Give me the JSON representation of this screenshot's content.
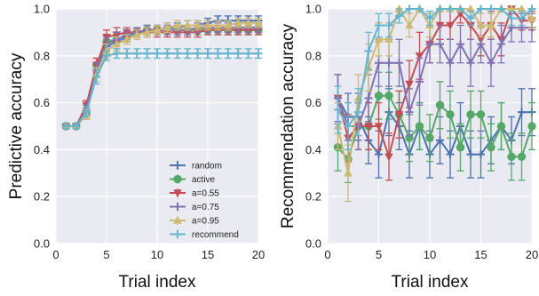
{
  "chart_data": [
    {
      "type": "line",
      "xlabel": "Trial index",
      "ylabel": "Predictive accuracy",
      "xlim": [
        0,
        20
      ],
      "ylim": [
        0.0,
        1.0
      ],
      "xticks": [
        "0",
        "5",
        "10",
        "15",
        "20"
      ],
      "yticks": [
        "0.0",
        "0.2",
        "0.4",
        "0.6",
        "0.8",
        "1.0"
      ],
      "grid": true,
      "legend_position": "lower-right",
      "x": [
        1,
        2,
        3,
        4,
        5,
        6,
        7,
        8,
        9,
        10,
        11,
        12,
        13,
        14,
        15,
        16,
        17,
        18,
        19,
        20
      ],
      "series": [
        {
          "name": "random",
          "color": "#4c72b0",
          "marker": "plus",
          "values": [
            0.5,
            0.5,
            0.55,
            0.74,
            0.84,
            0.86,
            0.88,
            0.9,
            0.91,
            0.91,
            0.92,
            0.92,
            0.93,
            0.93,
            0.94,
            0.95,
            0.95,
            0.95,
            0.95,
            0.95
          ],
          "errors": [
            0.01,
            0.01,
            0.02,
            0.03,
            0.03,
            0.03,
            0.02,
            0.02,
            0.02,
            0.02,
            0.02,
            0.02,
            0.02,
            0.02,
            0.02,
            0.02,
            0.02,
            0.02,
            0.02,
            0.02
          ]
        },
        {
          "name": "active",
          "color": "#55a868",
          "marker": "circle",
          "values": [
            0.5,
            0.5,
            0.56,
            0.76,
            0.86,
            0.87,
            0.89,
            0.9,
            0.91,
            0.91,
            0.91,
            0.91,
            0.91,
            0.91,
            0.91,
            0.91,
            0.91,
            0.91,
            0.91,
            0.91
          ],
          "errors": [
            0.01,
            0.01,
            0.02,
            0.03,
            0.03,
            0.03,
            0.02,
            0.02,
            0.02,
            0.02,
            0.02,
            0.02,
            0.02,
            0.02,
            0.02,
            0.02,
            0.02,
            0.02,
            0.02,
            0.02
          ]
        },
        {
          "name": "a=0.55",
          "color": "#c44e52",
          "marker": "triangle-down",
          "values": [
            0.5,
            0.5,
            0.59,
            0.76,
            0.88,
            0.89,
            0.9,
            0.9,
            0.9,
            0.9,
            0.9,
            0.9,
            0.9,
            0.9,
            0.91,
            0.91,
            0.91,
            0.91,
            0.91,
            0.91
          ],
          "errors": [
            0.01,
            0.01,
            0.02,
            0.03,
            0.03,
            0.03,
            0.02,
            0.02,
            0.02,
            0.02,
            0.02,
            0.02,
            0.02,
            0.02,
            0.02,
            0.02,
            0.02,
            0.02,
            0.02,
            0.02
          ]
        },
        {
          "name": "a=0.75",
          "color": "#8172b2",
          "marker": "plus",
          "values": [
            0.5,
            0.5,
            0.57,
            0.74,
            0.85,
            0.87,
            0.89,
            0.9,
            0.91,
            0.91,
            0.91,
            0.91,
            0.91,
            0.92,
            0.92,
            0.92,
            0.92,
            0.92,
            0.92,
            0.92
          ],
          "errors": [
            0.01,
            0.01,
            0.02,
            0.03,
            0.03,
            0.03,
            0.02,
            0.02,
            0.02,
            0.02,
            0.02,
            0.02,
            0.02,
            0.02,
            0.02,
            0.02,
            0.02,
            0.02,
            0.02,
            0.02
          ]
        },
        {
          "name": "a=0.95",
          "color": "#ccb974",
          "marker": "triangle-up",
          "values": [
            0.5,
            0.5,
            0.55,
            0.72,
            0.82,
            0.85,
            0.87,
            0.89,
            0.9,
            0.91,
            0.92,
            0.93,
            0.93,
            0.93,
            0.93,
            0.93,
            0.93,
            0.94,
            0.94,
            0.94
          ],
          "errors": [
            0.01,
            0.01,
            0.02,
            0.03,
            0.03,
            0.03,
            0.02,
            0.02,
            0.02,
            0.02,
            0.02,
            0.02,
            0.02,
            0.02,
            0.02,
            0.02,
            0.02,
            0.02,
            0.02,
            0.02
          ]
        },
        {
          "name": "recommend",
          "color": "#64b5cd",
          "marker": "plus",
          "values": [
            0.5,
            0.5,
            0.56,
            0.71,
            0.8,
            0.81,
            0.81,
            0.81,
            0.81,
            0.81,
            0.81,
            0.81,
            0.81,
            0.81,
            0.81,
            0.81,
            0.81,
            0.81,
            0.81,
            0.81
          ],
          "errors": [
            0.01,
            0.01,
            0.02,
            0.03,
            0.02,
            0.02,
            0.02,
            0.02,
            0.02,
            0.02,
            0.02,
            0.02,
            0.02,
            0.02,
            0.02,
            0.02,
            0.02,
            0.02,
            0.02,
            0.02
          ]
        }
      ]
    },
    {
      "type": "line",
      "xlabel": "Trial index",
      "ylabel": "Recommendation accuracy",
      "xlim": [
        0,
        20
      ],
      "ylim": [
        0.0,
        1.0
      ],
      "xticks": [
        "0",
        "5",
        "10",
        "15",
        "20"
      ],
      "yticks": [
        "0.0",
        "0.2",
        "0.4",
        "0.6",
        "0.8",
        "1.0"
      ],
      "grid": true,
      "legend_position": "none",
      "x": [
        1,
        2,
        3,
        4,
        5,
        6,
        7,
        8,
        9,
        10,
        11,
        12,
        13,
        14,
        15,
        16,
        17,
        18,
        19,
        20
      ],
      "series": [
        {
          "name": "random",
          "color": "#4c72b0",
          "marker": "plus",
          "values": [
            0.62,
            0.54,
            0.54,
            0.44,
            0.38,
            0.56,
            0.5,
            0.38,
            0.5,
            0.38,
            0.44,
            0.38,
            0.5,
            0.38,
            0.38,
            0.44,
            0.5,
            0.44,
            0.56,
            0.56
          ],
          "errors": [
            0.1,
            0.1,
            0.1,
            0.1,
            0.1,
            0.1,
            0.1,
            0.1,
            0.1,
            0.1,
            0.1,
            0.1,
            0.1,
            0.1,
            0.1,
            0.1,
            0.1,
            0.1,
            0.1,
            0.1
          ]
        },
        {
          "name": "active",
          "color": "#55a868",
          "marker": "circle",
          "values": [
            0.41,
            0.36,
            0.5,
            0.5,
            0.63,
            0.63,
            0.55,
            0.45,
            0.5,
            0.45,
            0.59,
            0.55,
            0.41,
            0.55,
            0.55,
            0.41,
            0.5,
            0.37,
            0.37,
            0.5
          ],
          "errors": [
            0.1,
            0.1,
            0.1,
            0.1,
            0.1,
            0.1,
            0.1,
            0.1,
            0.1,
            0.1,
            0.1,
            0.1,
            0.1,
            0.1,
            0.1,
            0.1,
            0.1,
            0.1,
            0.1,
            0.1
          ]
        },
        {
          "name": "a=0.55",
          "color": "#c44e52",
          "marker": "triangle-down",
          "values": [
            0.62,
            0.45,
            0.5,
            0.5,
            0.5,
            0.37,
            0.55,
            0.68,
            0.8,
            0.85,
            0.93,
            0.93,
            0.98,
            0.93,
            0.87,
            0.93,
            0.87,
            1.0,
            0.95,
            0.95
          ],
          "errors": [
            0.1,
            0.1,
            0.1,
            0.1,
            0.1,
            0.1,
            0.1,
            0.1,
            0.1,
            0.08,
            0.06,
            0.06,
            0.04,
            0.06,
            0.07,
            0.06,
            0.07,
            0.0,
            0.04,
            0.04
          ],
          "marker_overrides": []
        },
        {
          "name": "a=0.75",
          "color": "#8172b2",
          "marker": "plus",
          "values": [
            0.62,
            0.5,
            0.5,
            0.62,
            0.77,
            0.77,
            0.77,
            0.56,
            0.69,
            0.85,
            0.85,
            0.77,
            0.85,
            0.77,
            0.85,
            0.77,
            0.85,
            0.92,
            0.92,
            0.92
          ],
          "errors": [
            0.1,
            0.1,
            0.1,
            0.1,
            0.1,
            0.1,
            0.1,
            0.1,
            0.1,
            0.08,
            0.08,
            0.1,
            0.08,
            0.1,
            0.08,
            0.1,
            0.08,
            0.06,
            0.06,
            0.06
          ]
        },
        {
          "name": "a=0.95",
          "color": "#ccb974",
          "marker": "triangle-up",
          "values": [
            0.5,
            0.3,
            0.62,
            0.75,
            0.87,
            0.87,
            1.0,
            0.93,
            1.0,
            0.93,
            1.0,
            1.0,
            1.0,
            1.0,
            0.93,
            0.93,
            1.0,
            1.0,
            1.0,
            0.96
          ],
          "errors": [
            0.1,
            0.12,
            0.1,
            0.1,
            0.07,
            0.07,
            0.0,
            0.05,
            0.0,
            0.05,
            0.0,
            0.0,
            0.0,
            0.0,
            0.05,
            0.05,
            0.0,
            0.0,
            0.0,
            0.04
          ]
        },
        {
          "name": "recommend",
          "color": "#64b5cd",
          "marker": "plus",
          "values": [
            0.57,
            0.5,
            0.56,
            0.82,
            0.93,
            0.93,
            0.97,
            1.0,
            1.0,
            0.96,
            1.0,
            1.0,
            1.0,
            0.96,
            1.0,
            1.0,
            1.0,
            0.96,
            0.96,
            1.0
          ],
          "errors": [
            0.1,
            0.1,
            0.1,
            0.08,
            0.05,
            0.05,
            0.03,
            0.0,
            0.0,
            0.03,
            0.0,
            0.0,
            0.0,
            0.03,
            0.0,
            0.0,
            0.0,
            0.03,
            0.03,
            0.0
          ]
        }
      ]
    }
  ]
}
